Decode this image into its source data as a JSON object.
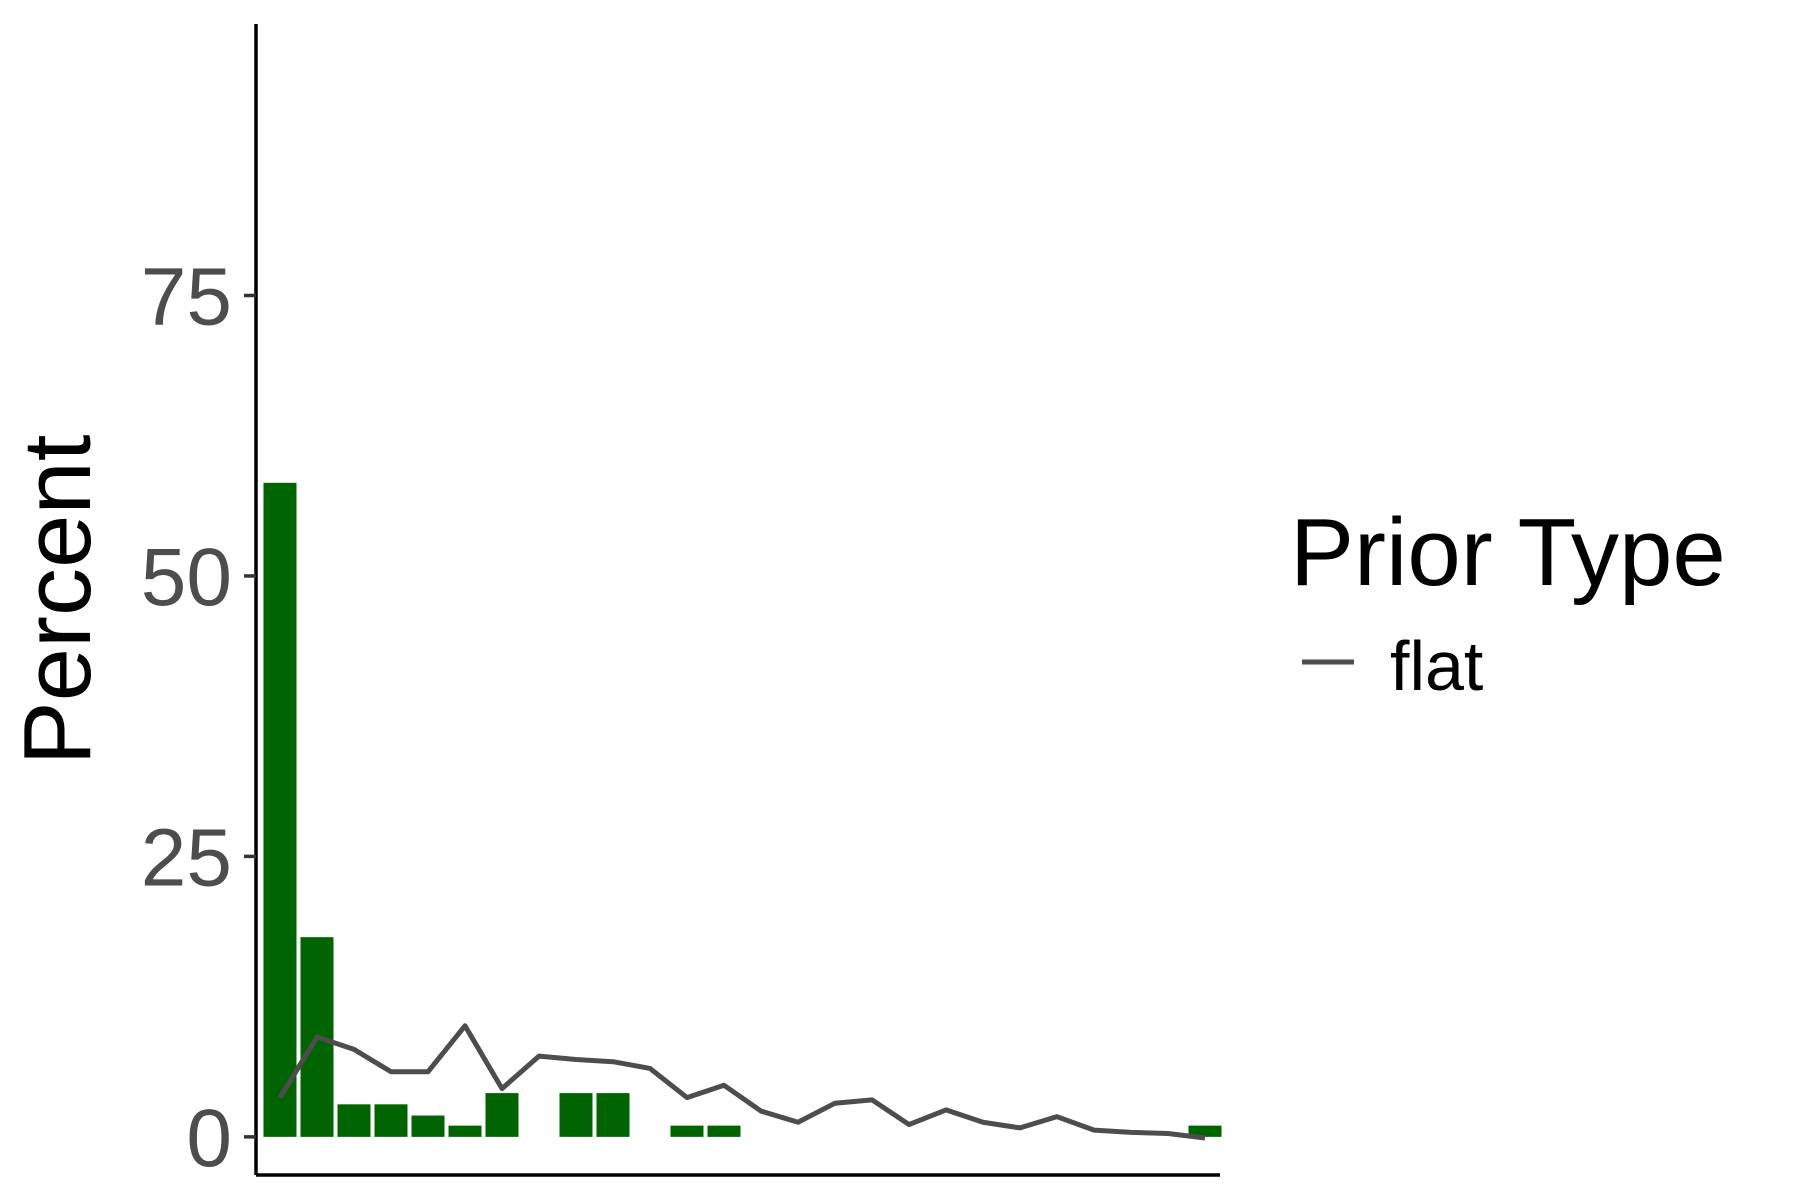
{
  "chart_data": {
    "type": "bar",
    "ylabel": "Percent",
    "xlabel": "",
    "ylim": [
      -3.4,
      99.2
    ],
    "y_ticks": [
      0,
      25,
      50,
      75
    ],
    "grid": false,
    "legend_position": "right",
    "legend": {
      "title": "Prior Type",
      "entries": [
        {
          "label": "flat",
          "symbol": "line"
        }
      ]
    },
    "bar_color": "#006400",
    "line_color": "#4d4d4d",
    "bars": {
      "values": [
        58.3,
        17.8,
        2.9,
        2.9,
        1.9,
        1.0,
        3.9,
        0,
        3.9,
        3.9,
        0,
        1.0,
        1.0,
        0,
        0,
        0,
        0,
        0,
        0,
        0,
        0,
        0,
        0,
        0,
        0,
        1.0
      ]
    },
    "series": [
      {
        "name": "flat",
        "type": "line",
        "values": [
          3.5,
          8.9,
          7.8,
          5.8,
          5.8,
          9.9,
          4.3,
          7.2,
          6.9,
          6.7,
          6.1,
          3.5,
          4.6,
          2.3,
          1.3,
          3.0,
          3.3,
          1.1,
          2.4,
          1.3,
          0.8,
          1.8,
          0.6,
          0.4,
          0.3,
          -0.1
        ]
      }
    ]
  }
}
